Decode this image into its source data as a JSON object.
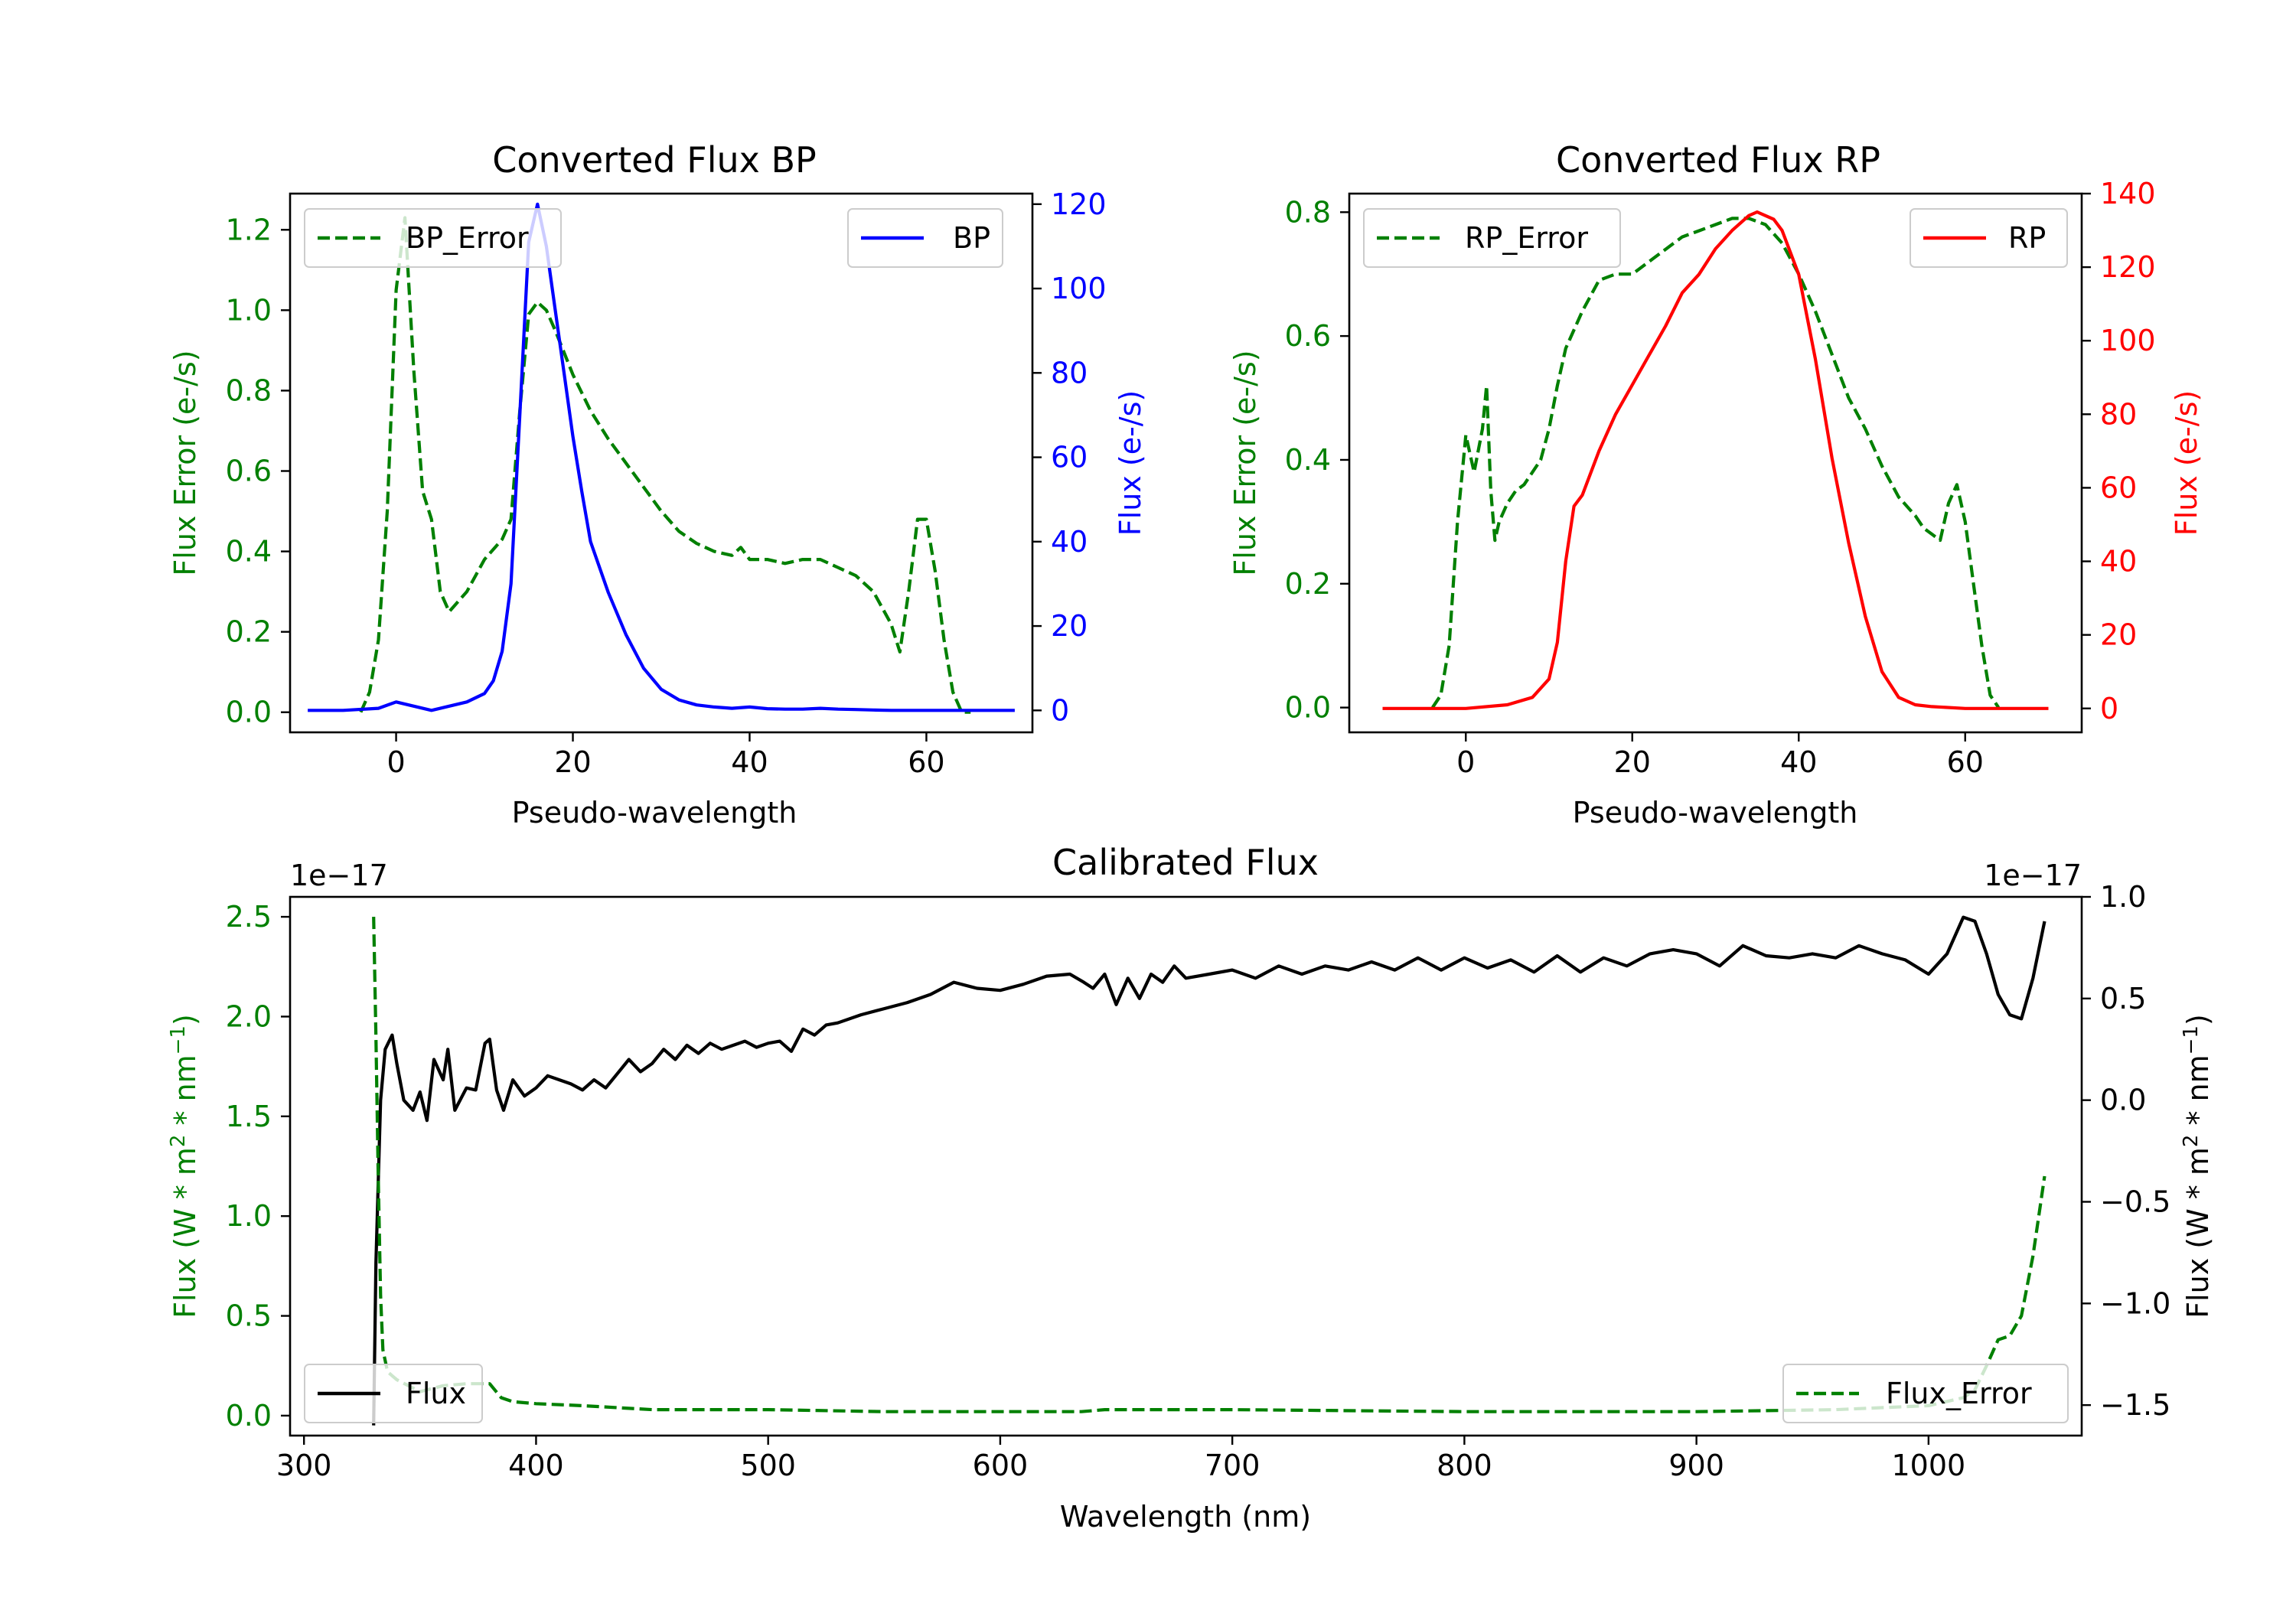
{
  "colors": {
    "green": "#008000",
    "blue": "#0000ff",
    "red": "#ff0000",
    "black": "#000000"
  },
  "chart_data": [
    {
      "id": "bp",
      "type": "line",
      "title": "Converted Flux BP",
      "xlabel": "Pseudo-wavelength",
      "ylabel_left": "Flux Error (e-/s)",
      "ylabel_right": "Flux (e-/s)",
      "xlim": [
        -12,
        72
      ],
      "ylim_left": [
        -0.05,
        1.29
      ],
      "ylim_right": [
        -5.2,
        122.5
      ],
      "xticks": [
        0,
        20,
        40,
        60
      ],
      "yticks_left": [
        0.0,
        0.2,
        0.4,
        0.6,
        0.8,
        1.0,
        1.2
      ],
      "yticks_right": [
        0,
        20,
        40,
        60,
        80,
        100,
        120
      ],
      "legend_left": "BP_Error",
      "legend_right": "BP",
      "series": [
        {
          "name": "BP_Error",
          "axis": "left",
          "style": "dashed",
          "color": "#008000",
          "x": [
            -4,
            -3,
            -2,
            -1,
            0,
            1,
            2,
            3,
            4,
            5,
            6,
            8,
            10,
            12,
            13,
            14,
            15,
            16,
            17,
            18,
            20,
            22,
            24,
            26,
            28,
            30,
            32,
            34,
            36,
            38,
            39,
            40,
            42,
            44,
            46,
            48,
            50,
            52,
            54,
            56,
            57,
            58,
            59,
            60,
            61,
            62,
            63,
            64,
            65
          ],
          "y": [
            0.0,
            0.05,
            0.18,
            0.5,
            1.05,
            1.23,
            0.85,
            0.55,
            0.48,
            0.3,
            0.25,
            0.3,
            0.38,
            0.43,
            0.48,
            0.75,
            0.99,
            1.02,
            1.0,
            0.95,
            0.84,
            0.75,
            0.68,
            0.62,
            0.56,
            0.5,
            0.45,
            0.42,
            0.4,
            0.39,
            0.41,
            0.38,
            0.38,
            0.37,
            0.38,
            0.38,
            0.36,
            0.34,
            0.3,
            0.22,
            0.15,
            0.3,
            0.48,
            0.48,
            0.35,
            0.18,
            0.05,
            0.0,
            0.0
          ]
        },
        {
          "name": "BP",
          "axis": "right",
          "style": "solid",
          "color": "#0000ff",
          "x": [
            -10,
            -6,
            -2,
            0,
            2,
            4,
            6,
            8,
            10,
            11,
            12,
            13,
            14,
            15,
            16,
            17,
            18,
            19,
            20,
            21,
            22,
            24,
            26,
            28,
            30,
            32,
            34,
            36,
            38,
            40,
            42,
            44,
            46,
            48,
            50,
            52,
            54,
            56,
            60,
            66,
            70
          ],
          "y": [
            0,
            0,
            0.5,
            2,
            1,
            0,
            1,
            2,
            4,
            7,
            14,
            30,
            70,
            111,
            120,
            110,
            95,
            80,
            65,
            52,
            40,
            28,
            18,
            10,
            5,
            2.5,
            1.3,
            0.8,
            0.5,
            0.8,
            0.4,
            0.3,
            0.3,
            0.5,
            0.3,
            0.2,
            0.1,
            0,
            0,
            0,
            0
          ]
        }
      ]
    },
    {
      "id": "rp",
      "type": "line",
      "title": "Converted Flux RP",
      "xlabel": "Pseudo-wavelength",
      "ylabel_left": "Flux Error (e-/s)",
      "ylabel_right": "Flux (e-/s)",
      "xlim": [
        -14,
        74
      ],
      "ylim_left": [
        -0.04,
        0.83
      ],
      "ylim_right": [
        -6.5,
        140
      ],
      "xticks": [
        0,
        20,
        40,
        60
      ],
      "yticks_left": [
        0.0,
        0.2,
        0.4,
        0.6,
        0.8
      ],
      "yticks_right": [
        0,
        20,
        40,
        60,
        80,
        100,
        120,
        140
      ],
      "legend_left": "RP_Error",
      "legend_right": "RP",
      "series": [
        {
          "name": "RP_Error",
          "axis": "left",
          "style": "dashed",
          "color": "#008000",
          "x": [
            -4,
            -3,
            -2,
            -1,
            0,
            1,
            2,
            2.5,
            3,
            3.5,
            4,
            5,
            6,
            7,
            8,
            9,
            10,
            11,
            12,
            14,
            16,
            18,
            20,
            22,
            24,
            26,
            28,
            30,
            32,
            34,
            36,
            38,
            40,
            42,
            44,
            46,
            48,
            50,
            52,
            54,
            55,
            56,
            57,
            58,
            59,
            60,
            61,
            62,
            63,
            64
          ],
          "y": [
            0.0,
            0.02,
            0.1,
            0.3,
            0.44,
            0.38,
            0.45,
            0.52,
            0.35,
            0.27,
            0.3,
            0.33,
            0.35,
            0.36,
            0.38,
            0.4,
            0.45,
            0.52,
            0.58,
            0.64,
            0.69,
            0.7,
            0.7,
            0.72,
            0.74,
            0.76,
            0.77,
            0.78,
            0.79,
            0.79,
            0.78,
            0.75,
            0.7,
            0.64,
            0.57,
            0.5,
            0.45,
            0.39,
            0.34,
            0.31,
            0.29,
            0.28,
            0.27,
            0.33,
            0.36,
            0.3,
            0.2,
            0.1,
            0.02,
            0.0
          ]
        },
        {
          "name": "RP",
          "axis": "right",
          "style": "solid",
          "color": "#ff0000",
          "x": [
            -10,
            0,
            5,
            8,
            10,
            11,
            12,
            13,
            14,
            16,
            18,
            20,
            22,
            24,
            26,
            28,
            30,
            32,
            34,
            35,
            36,
            37,
            38,
            40,
            42,
            44,
            46,
            48,
            50,
            52,
            54,
            56,
            60,
            66,
            70
          ],
          "y": [
            0,
            0,
            1,
            3,
            8,
            18,
            40,
            55,
            58,
            70,
            80,
            88,
            96,
            104,
            113,
            118,
            125,
            130,
            134,
            135,
            134,
            133,
            130,
            118,
            95,
            68,
            45,
            25,
            10,
            3,
            1,
            0.5,
            0,
            0,
            0
          ]
        }
      ]
    },
    {
      "id": "cal",
      "type": "line",
      "title": "Calibrated Flux",
      "xlabel": "Wavelength (nm)",
      "ylabel_left": "Flux (W * m",
      "ylabel_right": "Flux (W * m",
      "ylabel_sup": "2",
      "ylabel_mid": " * nm",
      "ylabel_sup2": "−1",
      "ylabel_end": ")",
      "offset_left": "1e−17",
      "offset_right": "1e−17",
      "xlim": [
        294,
        1066
      ],
      "ylim_left": [
        -0.1,
        2.6
      ],
      "ylim_right": [
        -1.65,
        1.0
      ],
      "xticks": [
        300,
        400,
        500,
        600,
        700,
        800,
        900,
        1000
      ],
      "yticks_left": [
        "0.0",
        "0.5",
        "1.0",
        "1.5",
        "2.0",
        "2.5"
      ],
      "yticks_right": [
        "−1.5",
        "−1.0",
        "−0.5",
        "0.0",
        "0.5",
        "1.0"
      ],
      "legend_left": "Flux",
      "legend_right": "Flux_Error",
      "series": [
        {
          "name": "Flux",
          "axis": "right",
          "style": "solid",
          "color": "#000000",
          "x": [
            330,
            331,
            333,
            335,
            338,
            340,
            343,
            347,
            350,
            353,
            356,
            360,
            362,
            365,
            370,
            374,
            378,
            380,
            383,
            386,
            390,
            395,
            400,
            405,
            410,
            415,
            420,
            425,
            430,
            435,
            440,
            445,
            450,
            455,
            460,
            465,
            470,
            475,
            480,
            485,
            490,
            495,
            500,
            505,
            510,
            515,
            520,
            525,
            530,
            540,
            550,
            560,
            570,
            580,
            590,
            600,
            610,
            620,
            630,
            636,
            640,
            645,
            650,
            655,
            660,
            665,
            670,
            675,
            680,
            690,
            700,
            710,
            720,
            730,
            740,
            750,
            760,
            770,
            780,
            790,
            800,
            810,
            820,
            830,
            840,
            850,
            860,
            870,
            880,
            890,
            900,
            910,
            920,
            930,
            940,
            950,
            960,
            970,
            980,
            990,
            1000,
            1008,
            1015,
            1020,
            1025,
            1030,
            1035,
            1040,
            1045,
            1050
          ],
          "y": [
            -1.6,
            -0.8,
            0.0,
            0.25,
            0.32,
            0.18,
            0.0,
            -0.05,
            0.04,
            -0.1,
            0.2,
            0.1,
            0.25,
            -0.05,
            0.06,
            0.05,
            0.28,
            0.3,
            0.05,
            -0.05,
            0.1,
            0.02,
            0.06,
            0.12,
            0.1,
            0.08,
            0.05,
            0.1,
            0.06,
            0.13,
            0.2,
            0.14,
            0.18,
            0.25,
            0.2,
            0.27,
            0.23,
            0.28,
            0.25,
            0.27,
            0.29,
            0.26,
            0.28,
            0.29,
            0.24,
            0.35,
            0.32,
            0.37,
            0.38,
            0.42,
            0.45,
            0.48,
            0.52,
            0.58,
            0.55,
            0.54,
            0.57,
            0.61,
            0.62,
            0.58,
            0.55,
            0.62,
            0.47,
            0.6,
            0.5,
            0.62,
            0.58,
            0.66,
            0.6,
            0.62,
            0.64,
            0.6,
            0.66,
            0.62,
            0.66,
            0.64,
            0.68,
            0.64,
            0.7,
            0.64,
            0.7,
            0.65,
            0.69,
            0.63,
            0.71,
            0.63,
            0.7,
            0.66,
            0.72,
            0.74,
            0.72,
            0.66,
            0.76,
            0.71,
            0.7,
            0.72,
            0.7,
            0.76,
            0.72,
            0.69,
            0.62,
            0.72,
            0.9,
            0.88,
            0.72,
            0.52,
            0.42,
            0.4,
            0.6,
            0.88
          ]
        },
        {
          "name": "Flux_Error",
          "axis": "left",
          "style": "dashed",
          "color": "#008000",
          "x": [
            330,
            331,
            332,
            333,
            334,
            336,
            338,
            340,
            345,
            350,
            360,
            370,
            380,
            385,
            390,
            400,
            420,
            450,
            500,
            550,
            600,
            635,
            645,
            700,
            800,
            900,
            960,
            1000,
            1015,
            1020,
            1025,
            1030,
            1035,
            1040,
            1045,
            1050
          ],
          "y": [
            2.5,
            1.9,
            1.2,
            0.6,
            0.33,
            0.22,
            0.2,
            0.18,
            0.15,
            0.12,
            0.15,
            0.16,
            0.16,
            0.09,
            0.07,
            0.06,
            0.05,
            0.03,
            0.03,
            0.02,
            0.02,
            0.02,
            0.03,
            0.03,
            0.02,
            0.02,
            0.03,
            0.05,
            0.09,
            0.13,
            0.25,
            0.38,
            0.4,
            0.5,
            0.8,
            1.2
          ]
        }
      ]
    }
  ]
}
